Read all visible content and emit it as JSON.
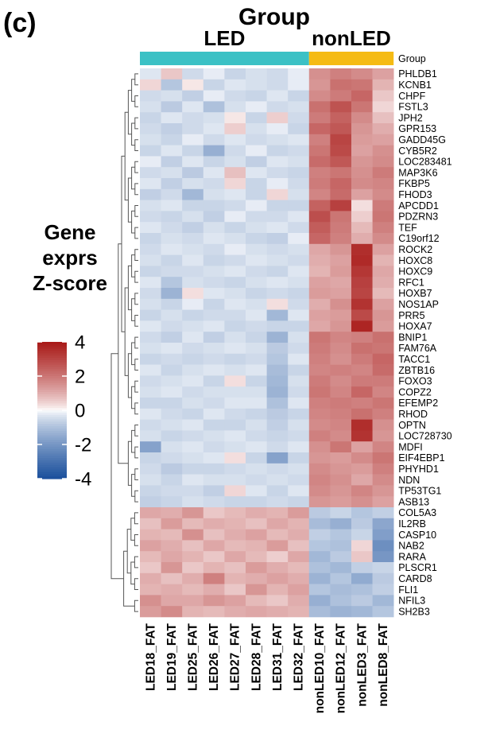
{
  "panel_label": "(c)",
  "chart_data": {
    "type": "heatmap",
    "annotation_title": "Group",
    "annotation_row_label": "Group",
    "groups": [
      {
        "name": "LED",
        "color": "#3bc1c5",
        "columns": 8
      },
      {
        "name": "nonLED",
        "color": "#f5bb14",
        "columns": 4
      }
    ],
    "columns": [
      "LED18_FAT",
      "LED19_FAT",
      "LED25_FAT",
      "LED26_FAT",
      "LED27_FAT",
      "LED28_FAT",
      "LED31_FAT",
      "LED32_FAT",
      "nonLED10_FAT",
      "nonLED12_FAT",
      "nonLED3_FAT",
      "nonLED8_FAT"
    ],
    "rows": [
      "PHLDB1",
      "KCNB1",
      "CHPF",
      "FSTL3",
      "JPH2",
      "GPR153",
      "GADD45G",
      "CYB5R2",
      "LOC283481",
      "MAP3K6",
      "FKBP5",
      "FHOD3",
      "APCDD1",
      "PDZRN3",
      "TEF",
      "C19orf12",
      "ROCK2",
      "HOXC8",
      "HOXC9",
      "RFC1",
      "HOXB7",
      "NOS1AP",
      "PRR5",
      "HOXA7",
      "BNIP1",
      "FAM76A",
      "TACC1",
      "ZBTB16",
      "FOXO3",
      "COPZ2",
      "EFEMP2",
      "RHOD",
      "OPTN",
      "LOC728730",
      "MDFI",
      "EIF4EBP1",
      "PHYHD1",
      "NDN",
      "TP53TG1",
      "ASB13",
      "COL5A3",
      "IL2RB",
      "CASP10",
      "NAB2",
      "RARA",
      "PLSCR1",
      "CARD8",
      "FLI1",
      "NFIL3",
      "SH2B3"
    ],
    "values": [
      [
        -0.3,
        0.6,
        -0.5,
        -0.2,
        -0.6,
        -0.4,
        -0.5,
        -0.2,
        1.5,
        1.8,
        1.6,
        1.2
      ],
      [
        0.4,
        -0.9,
        0.2,
        -0.6,
        -0.3,
        -0.4,
        -0.5,
        -0.2,
        1.4,
        2.1,
        2.0,
        0.9
      ],
      [
        -0.5,
        -0.4,
        -0.7,
        -0.2,
        -0.5,
        -0.6,
        -0.3,
        -0.6,
        1.6,
        1.9,
        2.3,
        0.6
      ],
      [
        -0.4,
        -0.8,
        -0.3,
        -1.0,
        -0.4,
        -0.2,
        -0.5,
        -0.4,
        2.1,
        2.7,
        2.0,
        0.4
      ],
      [
        -0.6,
        -0.3,
        -0.5,
        -0.4,
        0.2,
        -0.6,
        0.5,
        -0.5,
        1.9,
        2.4,
        1.6,
        0.7
      ],
      [
        -0.5,
        -0.7,
        -0.5,
        -0.3,
        0.5,
        -0.4,
        -0.2,
        -0.6,
        2.3,
        2.6,
        1.4,
        1.0
      ],
      [
        -0.4,
        -0.6,
        -0.2,
        -0.5,
        -0.3,
        -0.5,
        -0.4,
        -0.3,
        1.8,
        3.0,
        1.3,
        1.2
      ],
      [
        -0.6,
        -0.3,
        -0.6,
        -1.4,
        -0.5,
        -0.2,
        -0.6,
        -0.5,
        2.0,
        2.9,
        1.2,
        1.5
      ],
      [
        -0.2,
        -0.7,
        -0.3,
        -0.6,
        -0.4,
        -0.7,
        -0.3,
        -0.4,
        2.2,
        2.6,
        1.4,
        1.6
      ],
      [
        -0.5,
        -0.4,
        -0.8,
        -0.3,
        0.7,
        -0.3,
        -0.5,
        -0.6,
        1.8,
        2.0,
        1.5,
        1.9
      ],
      [
        -0.3,
        -0.7,
        -0.4,
        -0.5,
        0.4,
        -0.6,
        -0.2,
        -0.5,
        1.9,
        2.3,
        1.6,
        1.7
      ],
      [
        -0.7,
        -0.5,
        -1.2,
        -0.4,
        -0.3,
        -0.6,
        0.4,
        -0.4,
        1.7,
        2.2,
        1.2,
        1.6
      ],
      [
        -0.4,
        -0.3,
        -0.6,
        -0.6,
        -0.5,
        -0.2,
        -0.6,
        -0.6,
        2.4,
        3.1,
        0.3,
        1.9
      ],
      [
        -0.5,
        -0.6,
        -0.4,
        -0.7,
        -0.2,
        -0.5,
        -0.5,
        -0.3,
        2.8,
        2.0,
        0.5,
        2.0
      ],
      [
        -0.3,
        -0.5,
        -0.7,
        -0.4,
        -0.6,
        -0.4,
        -0.3,
        -0.5,
        2.5,
        1.9,
        0.8,
        1.8
      ],
      [
        -0.6,
        -0.4,
        -0.5,
        -0.3,
        -0.4,
        -0.6,
        -0.7,
        -0.2,
        2.3,
        1.8,
        1.0,
        1.6
      ],
      [
        -0.5,
        -0.3,
        -0.4,
        -0.5,
        -0.2,
        -0.4,
        -0.5,
        -0.4,
        1.1,
        1.4,
        3.5,
        1.2
      ],
      [
        -0.4,
        -0.6,
        -0.3,
        -0.6,
        -0.5,
        -0.3,
        -0.4,
        -0.5,
        1.0,
        1.2,
        3.6,
        0.9
      ],
      [
        -0.6,
        -0.5,
        -0.5,
        -0.4,
        -0.3,
        -0.5,
        -0.6,
        -0.3,
        0.9,
        1.3,
        3.3,
        1.1
      ],
      [
        -0.3,
        -0.9,
        -0.4,
        -0.5,
        -0.6,
        -0.4,
        -0.3,
        -0.4,
        1.2,
        1.1,
        3.1,
        1.0
      ],
      [
        -0.5,
        -1.3,
        0.3,
        -0.3,
        -0.4,
        -0.6,
        -0.5,
        -0.6,
        1.3,
        1.2,
        3.0,
        0.8
      ],
      [
        -0.4,
        -0.6,
        -0.2,
        -0.6,
        -0.3,
        -0.4,
        0.3,
        -0.5,
        1.0,
        1.5,
        3.4,
        1.2
      ],
      [
        -0.6,
        -0.4,
        -0.6,
        -0.5,
        -0.5,
        -0.3,
        -1.2,
        -0.3,
        1.2,
        1.3,
        2.9,
        1.4
      ],
      [
        -0.3,
        -0.5,
        -0.4,
        -0.3,
        -0.6,
        -0.5,
        -0.6,
        -0.6,
        1.1,
        1.4,
        3.7,
        1.3
      ],
      [
        -0.5,
        -0.7,
        -0.3,
        -0.7,
        -0.4,
        -0.6,
        -1.3,
        -0.4,
        2.0,
        1.7,
        1.8,
        2.1
      ],
      [
        -0.4,
        -0.3,
        -0.5,
        -0.4,
        -0.3,
        -0.4,
        -0.8,
        -0.5,
        1.9,
        1.6,
        2.1,
        2.0
      ],
      [
        -0.6,
        -0.5,
        -0.6,
        -0.5,
        -0.6,
        -0.5,
        -0.9,
        -0.3,
        1.8,
        1.5,
        1.9,
        2.3
      ],
      [
        -0.3,
        -0.6,
        -0.4,
        -0.3,
        -0.4,
        -0.3,
        -1.1,
        -0.6,
        1.7,
        1.8,
        1.7,
        2.2
      ],
      [
        -0.5,
        -0.4,
        -0.3,
        -0.6,
        0.3,
        -0.6,
        -1.2,
        -0.4,
        1.9,
        1.6,
        1.9,
        1.9
      ],
      [
        -0.4,
        -0.3,
        -0.5,
        -0.4,
        -0.4,
        -0.4,
        -1.3,
        -0.5,
        2.0,
        1.7,
        2.3,
        1.7
      ],
      [
        -0.6,
        -0.6,
        -0.4,
        -0.5,
        -0.3,
        -0.3,
        -1.0,
        -0.3,
        1.8,
        1.9,
        1.8,
        2.0
      ],
      [
        -0.3,
        -0.5,
        -0.6,
        -0.3,
        -0.5,
        -0.6,
        -0.8,
        -0.6,
        1.7,
        1.8,
        2.1,
        1.8
      ],
      [
        -0.5,
        -0.4,
        -0.3,
        -0.6,
        -0.6,
        -0.4,
        -0.7,
        -0.4,
        1.6,
        1.7,
        3.5,
        1.5
      ],
      [
        -0.4,
        -0.6,
        -0.5,
        -0.4,
        -0.3,
        -0.5,
        -0.6,
        -0.5,
        1.8,
        1.6,
        3.4,
        1.4
      ],
      [
        -1.7,
        -0.4,
        -0.3,
        -0.5,
        -0.4,
        -0.3,
        -0.5,
        -0.3,
        1.5,
        2.0,
        1.2,
        1.7
      ],
      [
        -0.6,
        -0.5,
        -0.4,
        -0.3,
        0.3,
        -0.6,
        -1.7,
        -0.6,
        1.4,
        1.3,
        1.6,
        2.0
      ],
      [
        -0.5,
        -0.8,
        -0.6,
        -0.6,
        -0.5,
        -0.4,
        -0.5,
        -0.4,
        1.6,
        1.4,
        1.3,
        1.8
      ],
      [
        -0.4,
        -0.6,
        -0.3,
        -0.4,
        -0.4,
        -0.5,
        -0.4,
        -0.5,
        1.7,
        1.5,
        1.1,
        1.6
      ],
      [
        -0.6,
        -0.5,
        -0.5,
        -0.7,
        0.4,
        -0.3,
        -0.6,
        -0.3,
        1.6,
        1.4,
        1.7,
        1.4
      ],
      [
        -0.7,
        -0.6,
        -0.4,
        -0.5,
        -0.6,
        -0.6,
        -0.5,
        -0.6,
        1.4,
        1.3,
        1.5,
        1.2
      ],
      [
        1.1,
        1.0,
        1.4,
        0.6,
        0.8,
        1.0,
        0.9,
        1.3,
        -0.8,
        -0.6,
        -0.9,
        -0.7
      ],
      [
        0.7,
        1.3,
        0.8,
        1.0,
        0.9,
        0.7,
        1.1,
        0.9,
        -1.1,
        -1.4,
        -0.8,
        -1.6
      ],
      [
        0.9,
        0.8,
        1.5,
        0.7,
        1.0,
        1.2,
        0.8,
        1.0,
        -0.7,
        -0.9,
        -0.6,
        -1.8
      ],
      [
        1.2,
        1.0,
        0.7,
        1.1,
        0.8,
        0.9,
        1.3,
        0.7,
        -0.9,
        -1.0,
        0.4,
        -2.2
      ],
      [
        0.8,
        1.1,
        0.9,
        0.6,
        1.1,
        0.8,
        0.5,
        1.1,
        -1.2,
        -0.8,
        0.6,
        -2.0
      ],
      [
        0.6,
        1.4,
        0.6,
        0.9,
        0.7,
        1.3,
        1.0,
        0.8,
        -1.0,
        -1.2,
        -0.7,
        -0.6
      ],
      [
        1.0,
        0.7,
        1.0,
        1.8,
        0.9,
        1.0,
        1.2,
        1.0,
        -1.3,
        -0.9,
        -1.5,
        -0.8
      ],
      [
        0.9,
        1.0,
        0.8,
        1.0,
        0.6,
        1.4,
        0.9,
        1.2,
        -0.9,
        -1.1,
        -1.0,
        -0.7
      ],
      [
        1.5,
        1.1,
        1.1,
        1.4,
        1.2,
        0.8,
        0.6,
        1.0,
        -1.4,
        -1.0,
        -0.8,
        -1.2
      ],
      [
        1.3,
        1.6,
        0.9,
        0.8,
        1.0,
        1.1,
        1.0,
        0.9,
        -1.1,
        -1.3,
        -1.2,
        -0.9
      ]
    ],
    "legend": {
      "title": [
        "Gene",
        "exprs",
        "Z-score"
      ],
      "ticks": [
        4,
        2,
        0,
        -2,
        -4
      ],
      "tick_labels": [
        "4",
        "2",
        "0",
        "-2",
        "-4"
      ],
      "range": [
        -4,
        4
      ]
    },
    "colors": {
      "low": "#1a4f9c",
      "mid": "#ffffff",
      "high": "#a81816"
    },
    "row_dendrogram": true,
    "clusters": [
      40,
      10
    ]
  }
}
